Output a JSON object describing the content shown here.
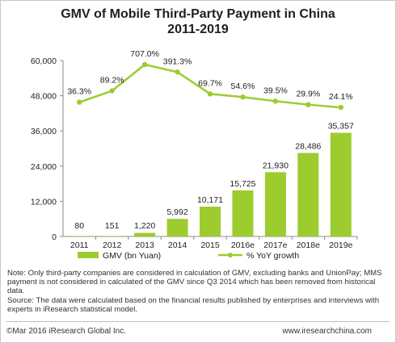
{
  "title_line1": "GMV of Mobile Third-Party Payment in China",
  "title_line2": "2011-2019",
  "chart_data": {
    "type": "bar",
    "categories": [
      "2011",
      "2012",
      "2013",
      "2014",
      "2015",
      "2016e",
      "2017e",
      "2018e",
      "2019e"
    ],
    "series": [
      {
        "name": "GMV (bn Yuan)",
        "type": "bar",
        "values": [
          80,
          151,
          1220,
          5992,
          10171,
          15725,
          21930,
          28486,
          35357
        ],
        "labels": [
          "80",
          "151",
          "1,220",
          "5,992",
          "10,171",
          "15,725",
          "21,930",
          "28,486",
          "35,357"
        ],
        "color": "#9ccc2e"
      },
      {
        "name": "% YoY growth",
        "type": "line",
        "values": [
          36.3,
          89.2,
          707.0,
          391.3,
          69.7,
          54.6,
          39.5,
          29.9,
          24.1
        ],
        "labels": [
          "36.3%",
          "89.2%",
          "707.0%",
          "391.3%",
          "69.7%",
          "54.6%",
          "39.5%",
          "29.9%",
          "24.1%"
        ],
        "color": "#9ccc2e"
      }
    ],
    "y_ticks": [
      "0",
      "12,000",
      "24,000",
      "36,000",
      "48,000",
      "60,000"
    ],
    "ylim": [
      0,
      60000
    ],
    "legend_position": "bottom",
    "grid": false
  },
  "notes": {
    "note": "Note: Only third-party companies are considered in calculation of  GMV, excluding banks and UnionPay;  MMS payment is not considered in calculated of the GMV since Q3 2014 which has been removed from historical data.",
    "source": "Source: The data were calculated based on the financial results published by enterprises and interviews with experts in iResearch statistical model."
  },
  "footer": {
    "copyright": "©Mar 2016 iResearch Global Inc.",
    "website": "www.iresearchchina.com"
  }
}
